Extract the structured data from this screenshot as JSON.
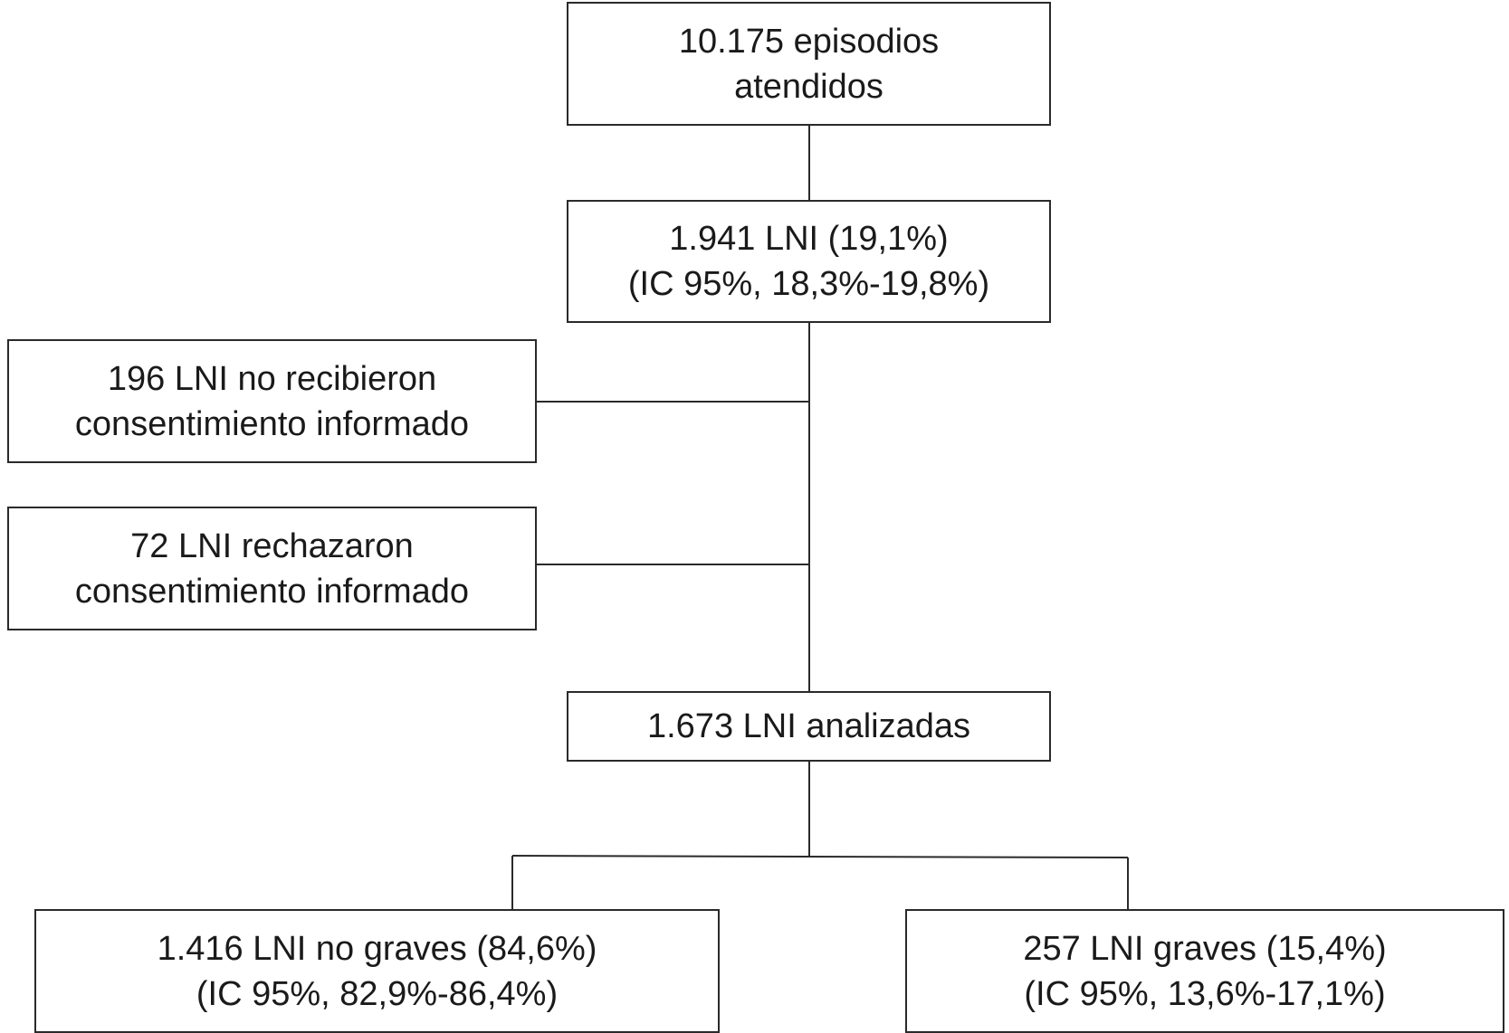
{
  "diagram": {
    "total_episodes": {
      "line1": "10.175 episodios",
      "line2": "atendidos"
    },
    "lni": {
      "line1": "1.941 LNI (19,1%)",
      "line2": "(IC 95%, 18,3%-19,8%)"
    },
    "no_consent": {
      "line1": "196 LNI no recibieron",
      "line2": "consentimiento informado"
    },
    "rejected_consent": {
      "line1": "72 LNI rechazaron",
      "line2": "consentimiento informado"
    },
    "analyzed": {
      "line1": "1.673 LNI analizadas"
    },
    "non_severe": {
      "line1": "1.416 LNI no graves (84,6%)",
      "line2": "(IC 95%, 82,9%-86,4%)"
    },
    "severe": {
      "line1": "257 LNI graves (15,4%)",
      "line2": "(IC 95%, 13,6%-17,1%)"
    }
  }
}
